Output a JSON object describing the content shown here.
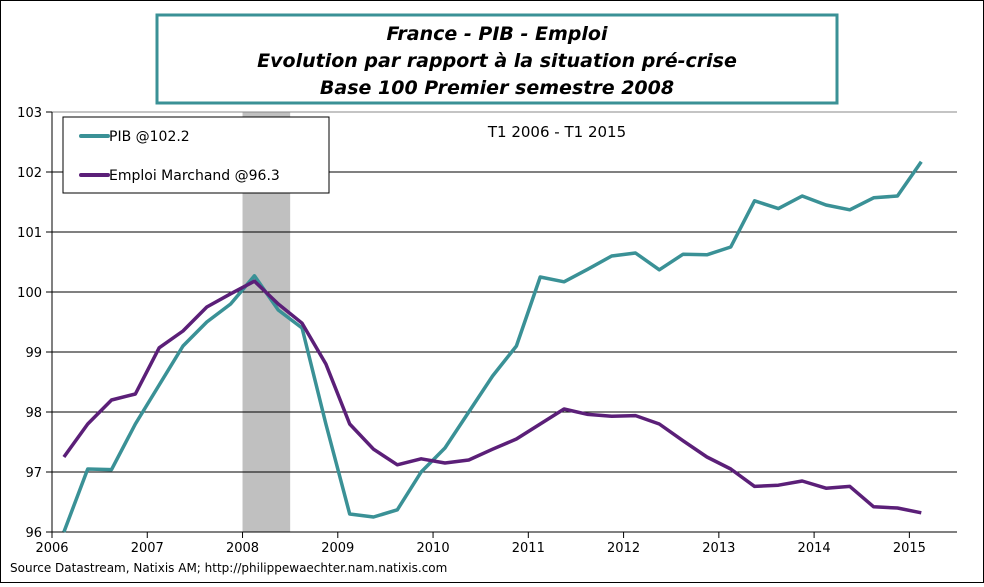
{
  "chart_data": {
    "type": "line",
    "title": [
      "France - PIB - Emploi",
      "Evolution par rapport à la situation pré-crise",
      "Base 100 Premier semestre 2008"
    ],
    "annotation": "T1 2006 - T1 2015",
    "source": "Source Datastream, Natixis AM; http://philippewaechter.nam.natixis.com",
    "xlabel": "",
    "ylabel": "",
    "x_start": "2006 Q1",
    "x_frequency": "quarterly",
    "xticks": [
      "2006",
      "2007",
      "2008",
      "2009",
      "2010",
      "2011",
      "2012",
      "2013",
      "2014",
      "2015"
    ],
    "xlim": [
      2006,
      2015.5
    ],
    "ylim": [
      96,
      103
    ],
    "yticks": [
      "96",
      "97",
      "98",
      "99",
      "100",
      "101",
      "102",
      "103"
    ],
    "grid": "horizontal",
    "legend_position": "top-left",
    "shaded_period": [
      2008.0,
      2008.5
    ],
    "shade_color": "#c0c0c0",
    "series": [
      {
        "name": "PIB @102.2",
        "color": "#3a9196",
        "values": [
          96.0,
          97.05,
          97.04,
          97.8,
          98.45,
          99.1,
          99.5,
          99.8,
          100.27,
          99.7,
          99.4,
          97.8,
          96.3,
          96.25,
          96.37,
          97.0,
          97.4,
          98.0,
          98.6,
          99.1,
          100.25,
          100.17,
          100.38,
          100.6,
          100.65,
          100.37,
          100.63,
          100.62,
          100.75,
          101.52,
          101.39,
          101.6,
          101.45,
          101.37,
          101.57,
          101.6,
          102.17
        ]
      },
      {
        "name": "Emploi Marchand @96.3",
        "color": "#5b1f78",
        "values": [
          97.25,
          97.8,
          98.2,
          98.3,
          99.07,
          99.35,
          99.75,
          99.97,
          100.18,
          99.8,
          99.48,
          98.8,
          97.8,
          97.38,
          97.12,
          97.22,
          97.15,
          97.2,
          97.38,
          97.55,
          97.8,
          98.05,
          97.96,
          97.93,
          97.94,
          97.8,
          97.52,
          97.25,
          97.05,
          96.76,
          96.78,
          96.85,
          96.73,
          96.76,
          96.42,
          96.4,
          96.32
        ]
      }
    ]
  }
}
